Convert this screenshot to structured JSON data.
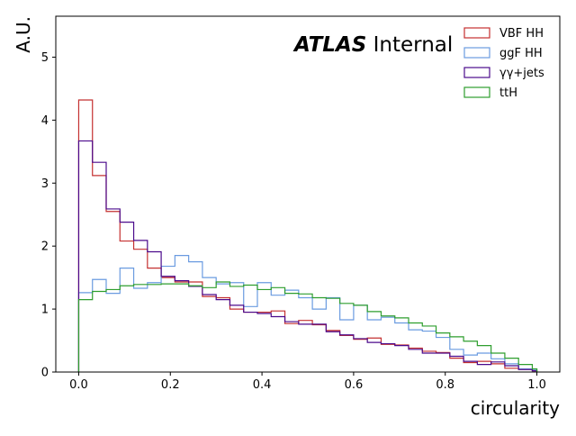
{
  "chart_data": {
    "type": "step-histogram",
    "title": "",
    "annotation_bold": "ATLAS",
    "annotation_rest": " Internal",
    "xlabel": "circularity",
    "ylabel": "A.U.",
    "xlim": [
      -0.05,
      1.05
    ],
    "ylim": [
      0,
      5.65
    ],
    "xticks": [
      0.0,
      0.2,
      0.4,
      0.6,
      0.8,
      1.0
    ],
    "xtick_labels": [
      "0.0",
      "0.2",
      "0.4",
      "0.6",
      "0.8",
      "1.0"
    ],
    "yticks": [
      0,
      1,
      2,
      3,
      4,
      5
    ],
    "ytick_labels": [
      "0",
      "1",
      "2",
      "3",
      "4",
      "5"
    ],
    "bin_edges": [
      0.0,
      0.03,
      0.06,
      0.09,
      0.12,
      0.15,
      0.18,
      0.21,
      0.24,
      0.27,
      0.3,
      0.33,
      0.36,
      0.39,
      0.42,
      0.45,
      0.48,
      0.51,
      0.54,
      0.57,
      0.6,
      0.63,
      0.66,
      0.69,
      0.72,
      0.75,
      0.78,
      0.81,
      0.84,
      0.87,
      0.9,
      0.93,
      0.96,
      0.99,
      1.0
    ],
    "grid": false,
    "legend_position": "top-right",
    "series": [
      {
        "name": "VBF HH",
        "color": "#c43030",
        "values": [
          4.32,
          3.12,
          2.55,
          2.08,
          1.95,
          1.65,
          1.5,
          1.43,
          1.43,
          1.2,
          1.18,
          1.0,
          0.95,
          0.95,
          0.97,
          0.77,
          0.82,
          0.75,
          0.66,
          0.58,
          0.52,
          0.54,
          0.44,
          0.43,
          0.38,
          0.33,
          0.31,
          0.22,
          0.15,
          0.17,
          0.13,
          0.06,
          0.04,
          0.02
        ]
      },
      {
        "name": "ggF HH",
        "color": "#6a9be0",
        "values": [
          1.26,
          1.47,
          1.25,
          1.65,
          1.33,
          1.42,
          1.68,
          1.85,
          1.75,
          1.5,
          1.4,
          1.42,
          1.04,
          1.42,
          1.22,
          1.3,
          1.18,
          1.0,
          1.18,
          0.83,
          1.06,
          0.83,
          0.87,
          0.78,
          0.67,
          0.65,
          0.55,
          0.36,
          0.27,
          0.3,
          0.21,
          0.13,
          0.05,
          0.03
        ]
      },
      {
        "name": "γγ+jets",
        "color": "#4b0a8c",
        "values": [
          3.67,
          3.33,
          2.59,
          2.38,
          2.09,
          1.91,
          1.52,
          1.45,
          1.36,
          1.23,
          1.15,
          1.06,
          0.95,
          0.93,
          0.88,
          0.8,
          0.76,
          0.76,
          0.64,
          0.59,
          0.53,
          0.47,
          0.45,
          0.42,
          0.36,
          0.3,
          0.3,
          0.25,
          0.17,
          0.12,
          0.16,
          0.1,
          0.04,
          0.02
        ]
      },
      {
        "name": "ttH",
        "color": "#2e9e2e",
        "values": [
          1.15,
          1.28,
          1.31,
          1.37,
          1.39,
          1.39,
          1.4,
          1.4,
          1.37,
          1.34,
          1.43,
          1.36,
          1.38,
          1.31,
          1.34,
          1.25,
          1.24,
          1.18,
          1.17,
          1.09,
          1.06,
          0.96,
          0.89,
          0.86,
          0.78,
          0.73,
          0.62,
          0.56,
          0.49,
          0.42,
          0.3,
          0.22,
          0.12,
          0.05
        ]
      }
    ]
  }
}
